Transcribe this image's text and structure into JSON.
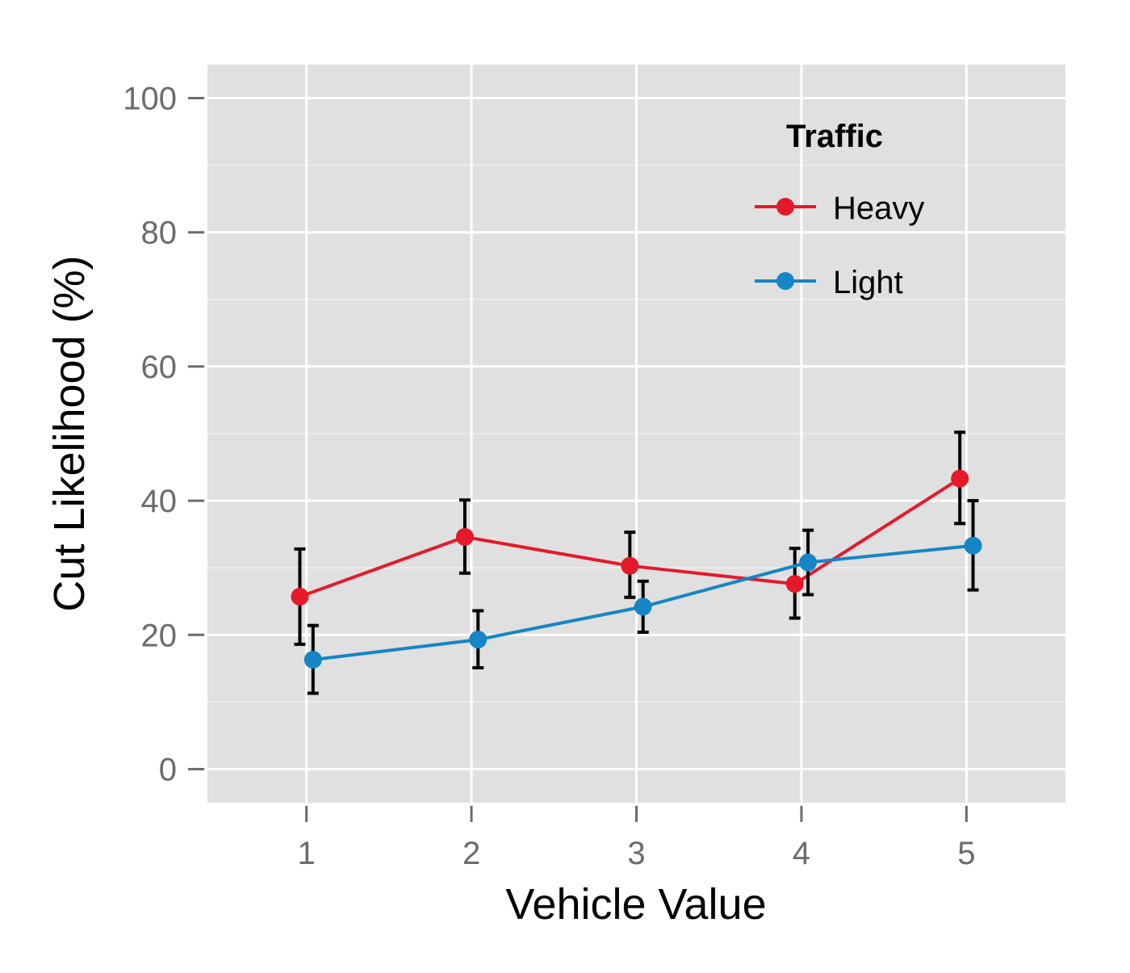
{
  "chart_data": {
    "type": "line",
    "xlabel": "Vehicle Value",
    "ylabel": "Cut Likelihood (%)",
    "categories": [
      "1",
      "2",
      "3",
      "4",
      "5"
    ],
    "x": [
      1,
      2,
      3,
      4,
      5
    ],
    "xlim": [
      0.4,
      5.6
    ],
    "ylim": [
      -5,
      105
    ],
    "y_ticks": [
      0,
      20,
      40,
      60,
      80,
      100
    ],
    "y_tick_labels": [
      "0",
      "20",
      "40",
      "60",
      "80",
      "100"
    ],
    "grid": true,
    "legend": {
      "title": "Traffic",
      "position": "top-right"
    },
    "series": [
      {
        "name": "Heavy",
        "color": "#E41A2B",
        "dodge": -0.04,
        "values": [
          25.7,
          34.6,
          30.3,
          27.6,
          43.3
        ],
        "error_low": [
          18.6,
          29.2,
          25.6,
          22.5,
          36.6
        ],
        "error_high": [
          32.8,
          40.1,
          35.3,
          32.9,
          50.2
        ]
      },
      {
        "name": "Light",
        "color": "#1585C5",
        "dodge": 0.04,
        "values": [
          16.3,
          19.3,
          24.2,
          30.8,
          33.3
        ],
        "error_low": [
          11.3,
          15.1,
          20.4,
          26.0,
          26.7
        ],
        "error_high": [
          21.4,
          23.6,
          28.0,
          35.6,
          40.0
        ]
      }
    ],
    "error_bar_color": "#000000",
    "panel_background": "#E0E0E0",
    "gridline_color": "#FFFFFF"
  }
}
